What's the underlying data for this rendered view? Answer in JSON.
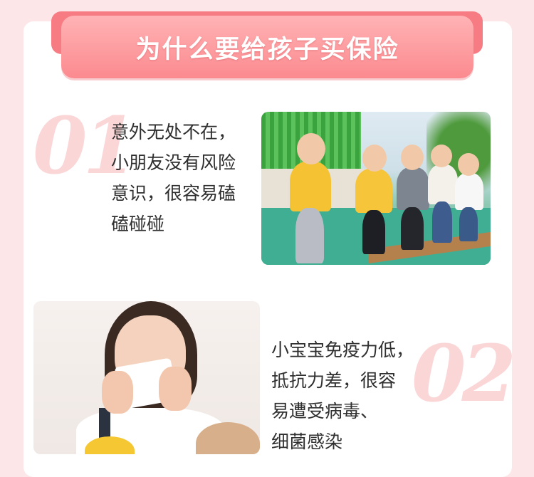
{
  "header": {
    "title": "为什么要给孩子买保险"
  },
  "reasons": [
    {
      "number": "01",
      "lines": [
        "意外无处不在，",
        "小朋友没有风险",
        "意识，很容易磕",
        "磕碰碰"
      ]
    },
    {
      "number": "02",
      "lines": [
        "小宝宝免疫力低，",
        "抵抗力差，很容",
        "易遭受病毒、",
        "细菌感染"
      ]
    }
  ],
  "colors": {
    "page_bg": "#fde6e8",
    "banner": "#fb8a8f",
    "number": "#fbd6d7",
    "text": "#2f2f2f"
  }
}
